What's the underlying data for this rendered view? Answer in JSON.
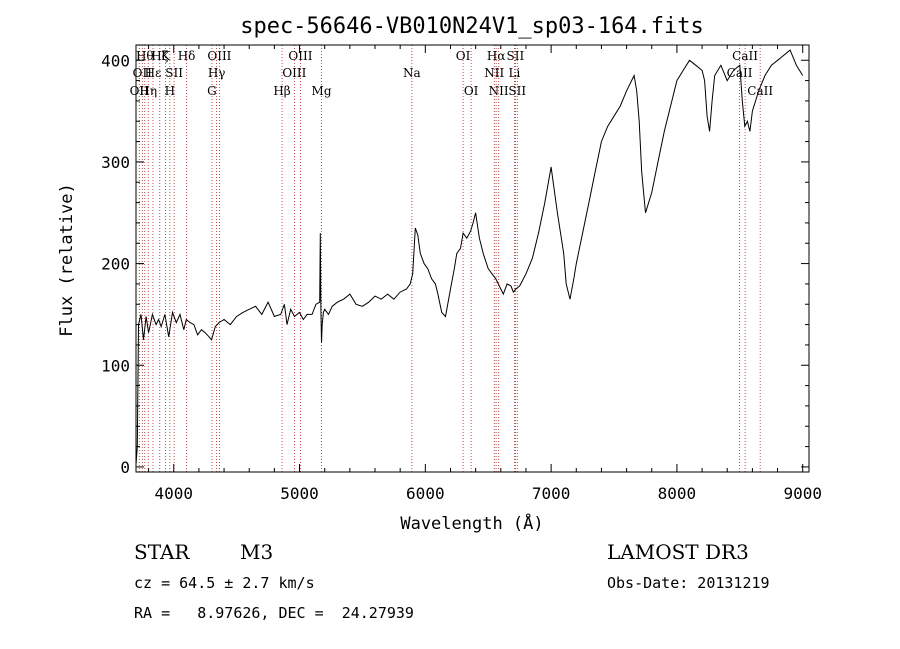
{
  "chart_data": {
    "type": "line",
    "title": "spec-56646-VB010N24V1_sp03-164.fits",
    "xlabel": "Wavelength (Å)",
    "ylabel": "Flux (relative)",
    "xlim": [
      3700,
      9050
    ],
    "ylim": [
      -5,
      415
    ],
    "xticks": [
      4000,
      5000,
      6000,
      7000,
      8000,
      9000
    ],
    "yticks": [
      0,
      100,
      200,
      300,
      400
    ],
    "series": [
      {
        "name": "flux",
        "x": [
          3700,
          3710,
          3720,
          3740,
          3760,
          3780,
          3800,
          3830,
          3860,
          3880,
          3900,
          3930,
          3960,
          3990,
          4020,
          4050,
          4080,
          4100,
          4130,
          4160,
          4190,
          4220,
          4250,
          4280,
          4300,
          4330,
          4360,
          4400,
          4450,
          4500,
          4550,
          4600,
          4650,
          4700,
          4750,
          4800,
          4850,
          4880,
          4900,
          4930,
          4960,
          5000,
          5030,
          5060,
          5100,
          5130,
          5160,
          5165,
          5170,
          5175,
          5180,
          5190,
          5200,
          5230,
          5260,
          5300,
          5350,
          5400,
          5450,
          5500,
          5550,
          5600,
          5650,
          5700,
          5750,
          5800,
          5850,
          5880,
          5900,
          5920,
          5940,
          5960,
          5990,
          6020,
          6050,
          6080,
          6100,
          6130,
          6160,
          6200,
          6230,
          6250,
          6280,
          6300,
          6330,
          6360,
          6380,
          6400,
          6430,
          6460,
          6500,
          6530,
          6560,
          6580,
          6600,
          6620,
          6650,
          6680,
          6700,
          6720,
          6750,
          6800,
          6850,
          6900,
          6950,
          7000,
          7050,
          7100,
          7120,
          7150,
          7180,
          7200,
          7250,
          7300,
          7350,
          7400,
          7450,
          7500,
          7550,
          7600,
          7620,
          7640,
          7660,
          7680,
          7700,
          7720,
          7750,
          7800,
          7850,
          7900,
          7950,
          8000,
          8050,
          8100,
          8150,
          8200,
          8220,
          8240,
          8260,
          8280,
          8300,
          8350,
          8400,
          8450,
          8500,
          8520,
          8540,
          8560,
          8580,
          8600,
          8650,
          8700,
          8750,
          8800,
          8850,
          8900,
          8950,
          9000
        ],
        "y": [
          2,
          20,
          140,
          150,
          125,
          148,
          132,
          150,
          140,
          145,
          138,
          150,
          128,
          152,
          142,
          150,
          135,
          145,
          142,
          140,
          130,
          135,
          132,
          128,
          125,
          138,
          142,
          145,
          140,
          148,
          152,
          155,
          158,
          150,
          162,
          148,
          150,
          160,
          140,
          155,
          148,
          152,
          145,
          150,
          150,
          160,
          162,
          230,
          155,
          122,
          140,
          152,
          155,
          150,
          158,
          162,
          165,
          170,
          160,
          158,
          162,
          168,
          165,
          170,
          165,
          172,
          175,
          180,
          190,
          235,
          228,
          210,
          200,
          195,
          185,
          180,
          170,
          152,
          148,
          175,
          195,
          210,
          215,
          230,
          225,
          232,
          240,
          250,
          225,
          210,
          195,
          190,
          185,
          180,
          175,
          170,
          180,
          178,
          172,
          175,
          178,
          190,
          205,
          230,
          260,
          295,
          250,
          210,
          180,
          165,
          185,
          200,
          230,
          260,
          290,
          320,
          335,
          345,
          355,
          370,
          375,
          380,
          385,
          370,
          340,
          290,
          250,
          270,
          300,
          330,
          355,
          380,
          390,
          400,
          395,
          390,
          380,
          345,
          330,
          360,
          385,
          395,
          380,
          390,
          395,
          360,
          335,
          340,
          330,
          350,
          370,
          385,
          395,
          400,
          405,
          410,
          395,
          385
        ]
      }
    ],
    "lines": [
      {
        "wave": 3726,
        "labels": [
          {
            "text": "OII",
            "row": 2
          }
        ]
      },
      {
        "wave": 3750,
        "labels": [
          {
            "text": "OII",
            "row": 1
          }
        ]
      },
      {
        "wave": 3770,
        "labels": [
          {
            "text": "Hθ",
            "row": 0
          }
        ]
      },
      {
        "wave": 3797,
        "labels": [
          {
            "text": "Hη",
            "row": 2
          }
        ]
      },
      {
        "wave": 3835,
        "labels": [
          {
            "text": "Hε",
            "row": 1
          }
        ]
      },
      {
        "wave": 3889,
        "labels": [
          {
            "text": "Hζ",
            "row": 0
          }
        ]
      },
      {
        "wave": 3934,
        "labels": [
          {
            "text": "K",
            "row": 0
          }
        ]
      },
      {
        "wave": 3969,
        "labels": [
          {
            "text": "H",
            "row": 2
          }
        ]
      },
      {
        "wave": 4003,
        "labels": [
          {
            "text": "SII",
            "row": 1
          }
        ]
      },
      {
        "wave": 4102,
        "labels": [
          {
            "text": "Hδ",
            "row": 0
          }
        ]
      },
      {
        "wave": 4304,
        "labels": [
          {
            "text": "G",
            "row": 2
          }
        ]
      },
      {
        "wave": 4341,
        "labels": [
          {
            "text": "Hγ",
            "row": 1
          }
        ]
      },
      {
        "wave": 4363,
        "labels": [
          {
            "text": "OIII",
            "row": 0
          }
        ]
      },
      {
        "wave": 4861,
        "labels": [
          {
            "text": "Hβ",
            "row": 2
          }
        ]
      },
      {
        "wave": 4959,
        "labels": [
          {
            "text": "OIII",
            "row": 1
          }
        ]
      },
      {
        "wave": 5007,
        "labels": [
          {
            "text": "OIII",
            "row": 0
          }
        ]
      },
      {
        "wave": 5175,
        "labels": [
          {
            "text": "Mg",
            "row": 2
          }
        ]
      },
      {
        "wave": 5893,
        "labels": [
          {
            "text": "Na",
            "row": 1
          }
        ]
      },
      {
        "wave": 6300,
        "labels": [
          {
            "text": "OI",
            "row": 0
          }
        ]
      },
      {
        "wave": 6364,
        "labels": [
          {
            "text": "OI",
            "row": 2
          }
        ]
      },
      {
        "wave": 6548,
        "labels": [
          {
            "text": "NII",
            "row": 1
          }
        ]
      },
      {
        "wave": 6563,
        "labels": [
          {
            "text": "Hα",
            "row": 0
          }
        ]
      },
      {
        "wave": 6583,
        "labels": [
          {
            "text": "NII",
            "row": 2
          }
        ]
      },
      {
        "wave": 6708,
        "labels": [
          {
            "text": "Li",
            "row": 1
          }
        ]
      },
      {
        "wave": 6716,
        "labels": [
          {
            "text": "SII",
            "row": 0
          }
        ]
      },
      {
        "wave": 6731,
        "labels": [
          {
            "text": "SII",
            "row": 2
          }
        ]
      },
      {
        "wave": 8498,
        "labels": [
          {
            "text": "CaII",
            "row": 1
          }
        ]
      },
      {
        "wave": 8542,
        "labels": [
          {
            "text": "CaII",
            "row": 0
          }
        ]
      },
      {
        "wave": 8662,
        "labels": [
          {
            "text": "CaII",
            "row": 2
          }
        ]
      }
    ]
  },
  "info": {
    "class": "STAR",
    "subclass": "M3",
    "survey": "LAMOST DR3",
    "cz": "cz = 64.5 ± 2.7 km/s",
    "obs_date": "Obs-Date: 20131219",
    "coords": "RA =   8.97626, DEC =  24.27939"
  }
}
